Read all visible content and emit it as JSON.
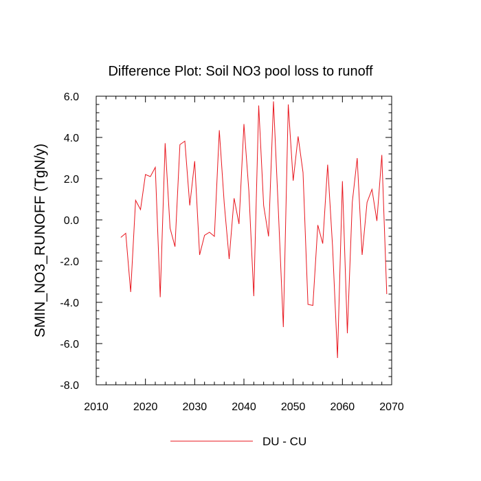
{
  "chart_data": {
    "type": "line",
    "title": "Difference Plot: Soil NO3 pool loss to runoff",
    "xlabel": "",
    "ylabel": "SMIN_NO3_RUNOFF  (TgN/y)",
    "xlim": [
      2010,
      2070
    ],
    "ylim": [
      -8.0,
      6.0
    ],
    "x_ticks": [
      2010,
      2020,
      2030,
      2040,
      2050,
      2060,
      2070
    ],
    "x_tick_labels": [
      "2010",
      "2020",
      "2030",
      "2040",
      "2050",
      "2060",
      "2070"
    ],
    "y_ticks": [
      6.0,
      4.0,
      2.0,
      0.0,
      -2.0,
      -4.0,
      -6.0,
      -8.0
    ],
    "y_tick_labels": [
      "6.0",
      "4.0",
      "2.0",
      "0.0",
      "-2.0",
      "-4.0",
      "-6.0",
      "-8.0"
    ],
    "grid": false,
    "legend_position": "bottom-center",
    "series": [
      {
        "name": "DU - CU",
        "color": "#e8141c",
        "x": [
          2015,
          2016,
          2017,
          2018,
          2019,
          2020,
          2021,
          2022,
          2023,
          2024,
          2025,
          2026,
          2027,
          2028,
          2029,
          2030,
          2031,
          2032,
          2033,
          2034,
          2035,
          2036,
          2037,
          2038,
          2039,
          2040,
          2041,
          2042,
          2043,
          2044,
          2045,
          2046,
          2047,
          2048,
          2049,
          2050,
          2051,
          2052,
          2053,
          2054,
          2055,
          2056,
          2057,
          2058,
          2059,
          2060,
          2061,
          2062,
          2063,
          2064,
          2065,
          2066,
          2067,
          2068,
          2069
        ],
        "values": [
          -0.85,
          -0.65,
          -3.5,
          0.95,
          0.5,
          2.2,
          2.1,
          2.55,
          -3.75,
          3.72,
          -0.4,
          -1.3,
          3.65,
          3.82,
          0.7,
          2.85,
          -1.7,
          -0.75,
          -0.6,
          -0.8,
          4.35,
          0.8,
          -1.9,
          1.05,
          -0.2,
          4.65,
          1.4,
          -3.7,
          5.55,
          0.7,
          -0.8,
          5.75,
          0.4,
          -5.2,
          5.6,
          1.9,
          4.05,
          2.3,
          -4.1,
          -4.15,
          -0.25,
          -1.15,
          2.68,
          -1.3,
          -6.7,
          1.88,
          -5.5,
          0.85,
          3.0,
          -1.7,
          0.85,
          1.48,
          -0.05,
          3.15,
          -3.6
        ]
      }
    ]
  }
}
